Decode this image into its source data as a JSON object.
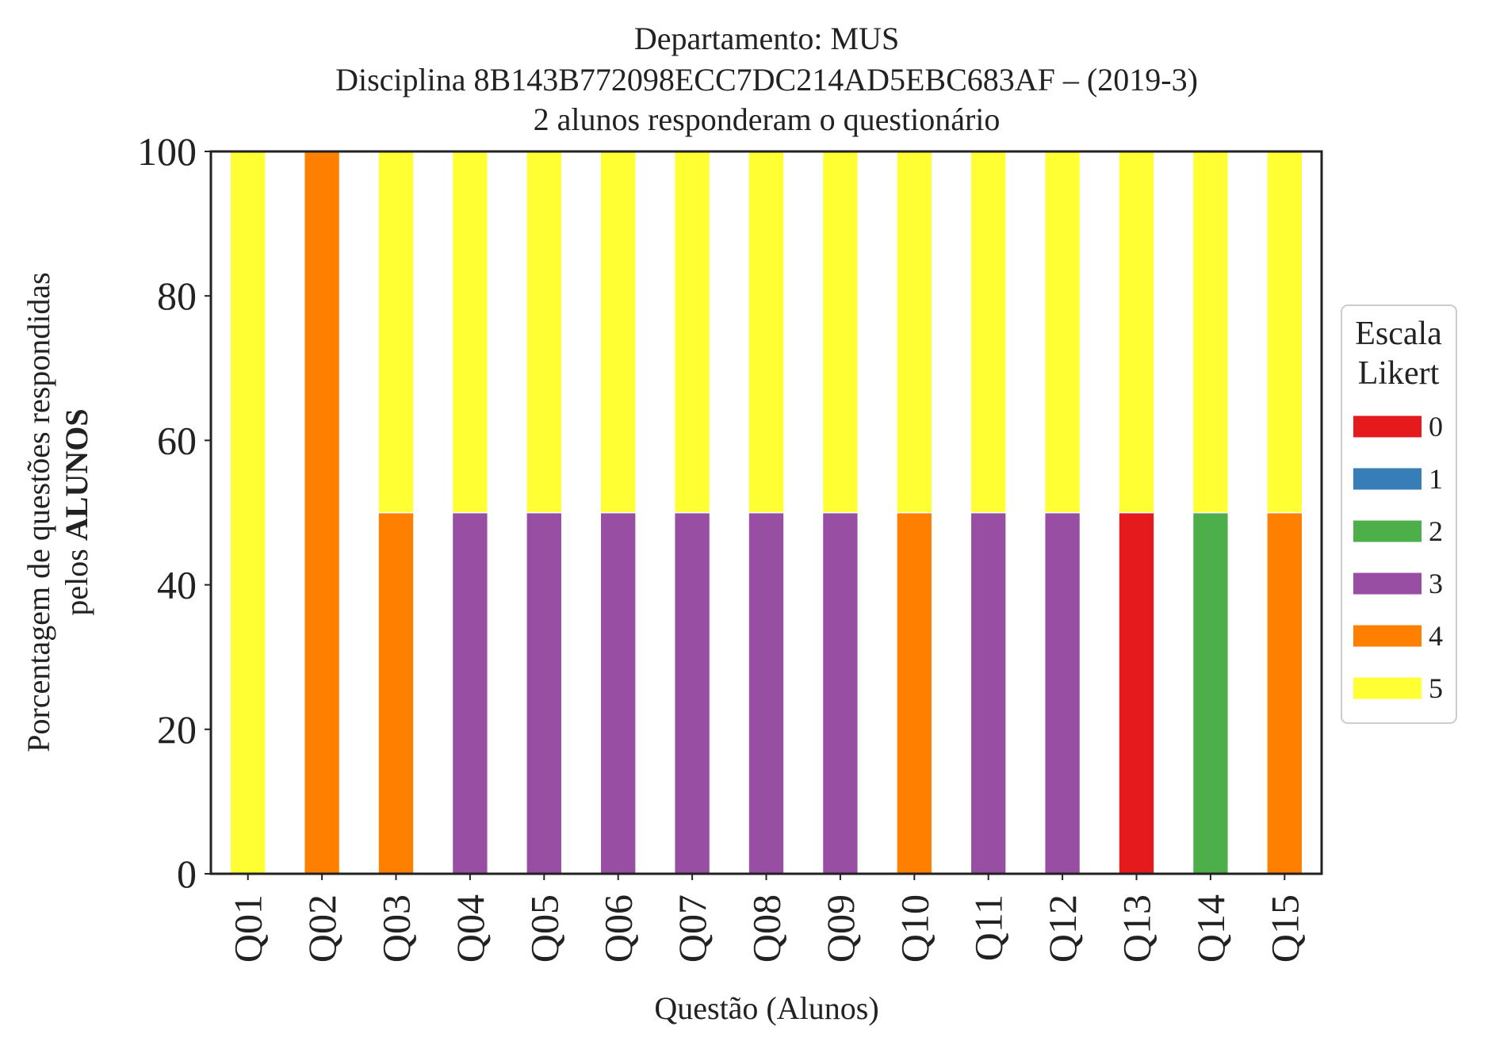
{
  "chart_data": {
    "type": "bar",
    "stacked": true,
    "title_lines": [
      "Departamento: MUS",
      "Disciplina 8B143B772098ECC7DC214AD5EBC683AF – (2019-3)",
      "2 alunos responderam o questionário"
    ],
    "xlabel": "Questão (Alunos)",
    "ylabel_line1": "Porcentagem de questões respondidas",
    "ylabel_line2_prefix": "pelos ",
    "ylabel_line2_bold": "ALUNOS",
    "ylim": [
      0,
      100
    ],
    "yticks": [
      "0",
      "20",
      "40",
      "60",
      "80",
      "100"
    ],
    "categories": [
      "Q01",
      "Q02",
      "Q03",
      "Q04",
      "Q05",
      "Q06",
      "Q07",
      "Q08",
      "Q09",
      "Q10",
      "Q11",
      "Q12",
      "Q13",
      "Q14",
      "Q15"
    ],
    "series": [
      {
        "name": "0",
        "color": "#e41a1c",
        "values": [
          0,
          0,
          0,
          0,
          0,
          0,
          0,
          0,
          0,
          0,
          0,
          0,
          50,
          0,
          0
        ]
      },
      {
        "name": "1",
        "color": "#377eb8",
        "values": [
          0,
          0,
          0,
          0,
          0,
          0,
          0,
          0,
          0,
          0,
          0,
          0,
          0,
          0,
          0
        ]
      },
      {
        "name": "2",
        "color": "#4daf4a",
        "values": [
          0,
          0,
          0,
          0,
          0,
          0,
          0,
          0,
          0,
          0,
          0,
          0,
          0,
          50,
          0
        ]
      },
      {
        "name": "3",
        "color": "#984ea3",
        "values": [
          0,
          0,
          0,
          50,
          50,
          50,
          50,
          50,
          50,
          0,
          50,
          50,
          0,
          0,
          0
        ]
      },
      {
        "name": "4",
        "color": "#ff7f00",
        "values": [
          0,
          100,
          50,
          0,
          0,
          0,
          0,
          0,
          0,
          50,
          0,
          0,
          0,
          0,
          50
        ]
      },
      {
        "name": "5",
        "color": "#ffff33",
        "values": [
          100,
          0,
          50,
          50,
          50,
          50,
          50,
          50,
          50,
          50,
          50,
          50,
          50,
          50,
          50
        ]
      }
    ],
    "legend": {
      "title_lines": [
        "Escala",
        "Likert"
      ],
      "position": "center-right, outside plot"
    },
    "grid": false
  }
}
